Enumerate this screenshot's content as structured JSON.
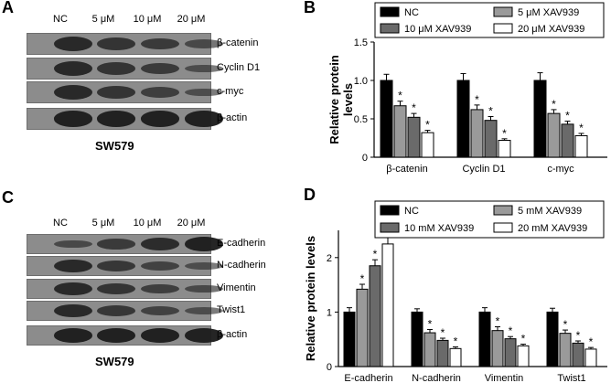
{
  "panels": {
    "A": {
      "letter": "A",
      "headers": [
        "NC",
        "5 μM",
        "10 μM",
        "20 μM"
      ],
      "rows": [
        {
          "label": "β-catenin",
          "band_intensity": [
            0.85,
            0.7,
            0.6,
            0.4
          ]
        },
        {
          "label": "Cyclin D1",
          "band_intensity": [
            0.85,
            0.7,
            0.6,
            0.35
          ]
        },
        {
          "label": "c-myc",
          "band_intensity": [
            0.85,
            0.7,
            0.55,
            0.35
          ]
        },
        {
          "label": "β-actin",
          "band_intensity": [
            0.95,
            0.95,
            0.95,
            0.95
          ]
        }
      ],
      "cell_line": "SW579"
    },
    "C": {
      "letter": "C",
      "headers": [
        "NC",
        "5 μM",
        "10 μM",
        "20 μM"
      ],
      "rows": [
        {
          "label": "E-cadherin",
          "band_intensity": [
            0.4,
            0.6,
            0.8,
            0.95
          ]
        },
        {
          "label": "N-cadherin",
          "band_intensity": [
            0.85,
            0.65,
            0.5,
            0.35
          ]
        },
        {
          "label": "Vimentin",
          "band_intensity": [
            0.85,
            0.7,
            0.55,
            0.4
          ]
        },
        {
          "label": "Twist1",
          "band_intensity": [
            0.85,
            0.65,
            0.5,
            0.35
          ]
        },
        {
          "label": "β-actin",
          "band_intensity": [
            0.95,
            0.95,
            0.95,
            0.95
          ]
        }
      ],
      "cell_line": "SW579"
    }
  },
  "colors": {
    "NC": "#000000",
    "low": "#9a9a9a",
    "mid": "#6a6a6a",
    "high": "#ffffff"
  },
  "chart_data": [
    {
      "letter": "B",
      "type": "bar",
      "categories": [
        "β-catenin",
        "Cyclin D1",
        "c-myc"
      ],
      "series": [
        {
          "name": "NC",
          "values": [
            1.0,
            1.0,
            1.0
          ],
          "errors": [
            0.08,
            0.09,
            0.1
          ]
        },
        {
          "name": "5 μM XAV939",
          "values": [
            0.67,
            0.62,
            0.57
          ],
          "errors": [
            0.06,
            0.06,
            0.05
          ]
        },
        {
          "name": "10 μM XAV939",
          "values": [
            0.52,
            0.48,
            0.43
          ],
          "errors": [
            0.05,
            0.05,
            0.04
          ]
        },
        {
          "name": "20 μM XAV939",
          "values": [
            0.32,
            0.22,
            0.28
          ],
          "errors": [
            0.03,
            0.02,
            0.03
          ]
        }
      ],
      "significance": [
        [
          "",
          "*",
          "*",
          "*"
        ],
        [
          "",
          "*",
          "*",
          "*"
        ],
        [
          "",
          "*",
          "*",
          "*"
        ]
      ],
      "ylabel": "Relative protein levels",
      "ylim": [
        0,
        1.5
      ],
      "yticks": [
        "0",
        "0.5",
        "1.0",
        "1.5"
      ],
      "legend": "top"
    },
    {
      "letter": "D",
      "type": "bar",
      "categories": [
        "E-cadherin",
        "N-cadherin",
        "Vimentin",
        "Twist1"
      ],
      "series": [
        {
          "name": "NC",
          "values": [
            1.0,
            1.0,
            1.0,
            1.0
          ],
          "errors": [
            0.08,
            0.06,
            0.08,
            0.07
          ]
        },
        {
          "name": "5 mM XAV939",
          "values": [
            1.42,
            0.62,
            0.66,
            0.61
          ],
          "errors": [
            0.09,
            0.06,
            0.07,
            0.06
          ]
        },
        {
          "name": "10 mM XAV939",
          "values": [
            1.85,
            0.48,
            0.51,
            0.43
          ],
          "errors": [
            0.11,
            0.04,
            0.04,
            0.04
          ]
        },
        {
          "name": "20 mM XAV939",
          "values": [
            2.25,
            0.33,
            0.38,
            0.32
          ],
          "errors": [
            0.14,
            0.03,
            0.03,
            0.03
          ]
        }
      ],
      "significance": [
        [
          "",
          "*",
          "*",
          "*"
        ],
        [
          "",
          "*",
          "*",
          "*"
        ],
        [
          "",
          "*",
          "*",
          "*"
        ],
        [
          "",
          "*",
          "*",
          "*"
        ]
      ],
      "ylabel": "Relative protein levels",
      "ylim": [
        0,
        2.5
      ],
      "yticks": [
        "0",
        "1",
        "2"
      ],
      "legend": "top"
    }
  ]
}
